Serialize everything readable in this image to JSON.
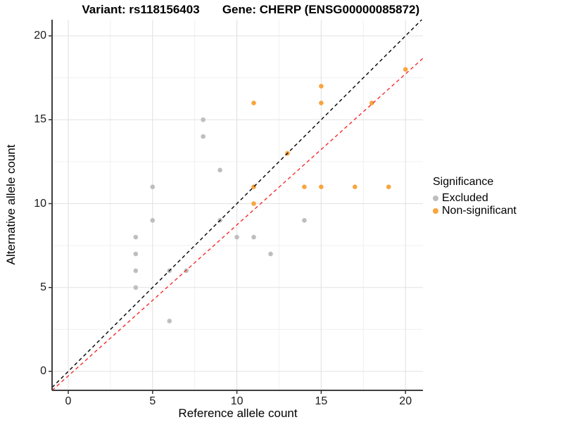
{
  "titles": {
    "left": "Variant: rs118156403",
    "right": "Gene: CHERP (ENSG00000085872)"
  },
  "chart_data": {
    "type": "scatter",
    "xlabel": "Reference allele count",
    "ylabel": "Alternative allele count",
    "x_ticks": [
      0,
      5,
      10,
      15,
      20
    ],
    "y_ticks": [
      0,
      5,
      10,
      15,
      20
    ],
    "xlim": [
      -1.0,
      21.0
    ],
    "ylim": [
      -1.15,
      20.95
    ],
    "grid": {
      "major": [
        0,
        5,
        10,
        15,
        20
      ],
      "minor": [
        2.5,
        7.5,
        12.5,
        17.5
      ]
    },
    "series": [
      {
        "name": "Excluded",
        "color": "#BEBEBE",
        "points": [
          [
            4,
            5
          ],
          [
            4,
            6
          ],
          [
            4,
            7
          ],
          [
            4,
            8
          ],
          [
            5,
            9
          ],
          [
            5,
            11
          ],
          [
            6,
            3
          ],
          [
            6,
            6
          ],
          [
            7,
            6
          ],
          [
            8,
            14
          ],
          [
            8,
            15
          ],
          [
            9,
            9
          ],
          [
            9,
            12
          ],
          [
            10,
            8
          ],
          [
            11,
            8
          ],
          [
            12,
            7
          ],
          [
            14,
            9
          ]
        ]
      },
      {
        "name": "Non-significant",
        "color": "#F8A53F",
        "points": [
          [
            11,
            10
          ],
          [
            11,
            11
          ],
          [
            11,
            16
          ],
          [
            13,
            13
          ],
          [
            14,
            11
          ],
          [
            15,
            11
          ],
          [
            15,
            16
          ],
          [
            15,
            17
          ],
          [
            17,
            11
          ],
          [
            18,
            16
          ],
          [
            19,
            11
          ],
          [
            20,
            18
          ]
        ]
      }
    ],
    "lines": [
      {
        "name": "identity",
        "slope": 1.0,
        "intercept": 0.0,
        "color": "#000000",
        "dash": "5,4"
      },
      {
        "name": "fit",
        "slope": 0.9,
        "intercept": -0.27,
        "color": "#F62C2C",
        "dash": "5,4"
      }
    ],
    "legend": {
      "title": "Significance",
      "position": "right",
      "items": [
        {
          "label": "Excluded",
          "color": "#BEBEBE"
        },
        {
          "label": "Non-significant",
          "color": "#F8A53F"
        }
      ]
    }
  },
  "colors": {
    "grid_major": "#E2E2E2",
    "grid_minor": "#F0F0F0",
    "axis_line": "#3F3F3F",
    "tick_mark": "#333333"
  }
}
